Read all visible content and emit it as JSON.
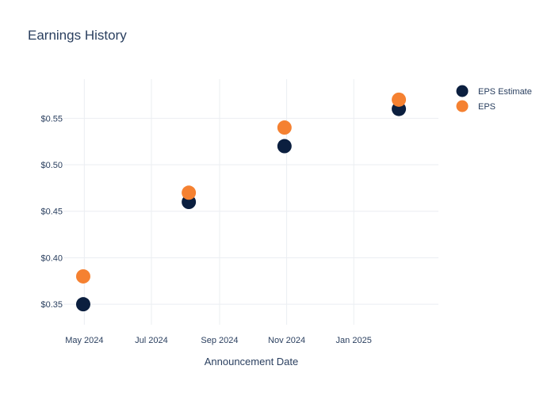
{
  "chart_data": {
    "type": "scatter",
    "title": "Earnings History",
    "xlabel": "Announcement Date",
    "ylabel": "",
    "x_ticks": [
      {
        "date": "2024-05-01",
        "label": "May 2024"
      },
      {
        "date": "2024-07-01",
        "label": "Jul 2024"
      },
      {
        "date": "2024-09-01",
        "label": "Sep 2024"
      },
      {
        "date": "2024-11-01",
        "label": "Nov 2024"
      },
      {
        "date": "2025-01-01",
        "label": "Jan 2025"
      }
    ],
    "y_ticks": [
      {
        "value": 0.35,
        "label": "$0.35"
      },
      {
        "value": 0.4,
        "label": "$0.40"
      },
      {
        "value": 0.45,
        "label": "$0.45"
      },
      {
        "value": 0.5,
        "label": "$0.50"
      },
      {
        "value": 0.55,
        "label": "$0.55"
      }
    ],
    "xlim": [
      "2024-04-12",
      "2025-03-19"
    ],
    "ylim": [
      0.328,
      0.592
    ],
    "grid": true,
    "legend_position": "top-right",
    "x": [
      "2024-04-30",
      "2024-08-04",
      "2024-10-30",
      "2025-02-11"
    ],
    "series": [
      {
        "name": "EPS Estimate",
        "color": "#0b1f3f",
        "values": [
          0.35,
          0.46,
          0.52,
          0.56
        ]
      },
      {
        "name": "EPS",
        "color": "#f58131",
        "values": [
          0.38,
          0.47,
          0.54,
          0.57
        ]
      }
    ]
  }
}
